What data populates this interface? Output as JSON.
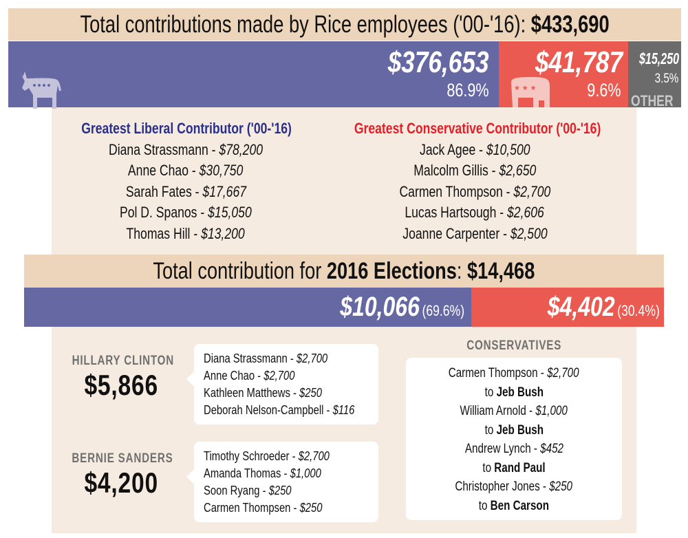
{
  "header": {
    "title_text": "Total contributions made by Rice employees ('00-'16): ",
    "title_total": "$433,690"
  },
  "overall": {
    "democrat": {
      "amount": "$376,653",
      "percent": "86.9%",
      "icon": "donkey-icon"
    },
    "republican": {
      "amount": "$41,787",
      "percent": "9.6%",
      "icon": "elephant-icon"
    },
    "other": {
      "amount": "$15,250",
      "percent": "3.5%",
      "label": "OTHER"
    }
  },
  "liberal": {
    "heading": "Greatest Liberal Contributor ('00-'16)",
    "items": [
      {
        "name": "Diana Strassmann - ",
        "amount": "$78,200"
      },
      {
        "name": "Anne Chao - ",
        "amount": "$30,750"
      },
      {
        "name": "Sarah Fates - ",
        "amount": "$17,667"
      },
      {
        "name": "Pol D. Spanos - ",
        "amount": "$15,050"
      },
      {
        "name": "Thomas Hill - ",
        "amount": "$13,200"
      }
    ]
  },
  "conservative": {
    "heading": "Greatest Conservative Contributor ('00-'16)",
    "items": [
      {
        "name": "Jack Agee - ",
        "amount": "$10,500"
      },
      {
        "name": "Malcolm Gillis - ",
        "amount": "$2,650"
      },
      {
        "name": "Carmen Thompson - ",
        "amount": "$2,700"
      },
      {
        "name": "Lucas Hartsough - ",
        "amount": "$2,606"
      },
      {
        "name": "Joanne Carpenter - ",
        "amount": "$2,500"
      }
    ]
  },
  "election2016": {
    "title_text": "Total contribution for ",
    "title_bold": "2016 Elections",
    "title_colon": ": ",
    "title_total": "$14,468",
    "democrat": {
      "amount": "$10,066",
      "percent": "(69.6%)"
    },
    "republican": {
      "amount": "$4,402",
      "percent": "(30.4%)"
    }
  },
  "candidates": [
    {
      "name": "HILLARY CLINTON",
      "total": "$5,866",
      "donors": [
        {
          "name": "Diana Strassmann - ",
          "amount": "$2,700"
        },
        {
          "name": "Anne Chao - ",
          "amount": "$2,700"
        },
        {
          "name": "Kathleen Matthews - ",
          "amount": "$250"
        },
        {
          "name": "Deborah Nelson-Campbell - ",
          "amount": "$116"
        }
      ]
    },
    {
      "name": "BERNIE SANDERS",
      "total": "$4,200",
      "donors": [
        {
          "name": "Timothy Schroeder - ",
          "amount": "$2,700"
        },
        {
          "name": "Amanda Thomas - ",
          "amount": "$1,000"
        },
        {
          "name": "Soon Ryang - ",
          "amount": "$250"
        },
        {
          "name": "Carmen Thompsen - ",
          "amount": "$250"
        }
      ]
    }
  ],
  "conservatives2016": {
    "heading": "CONSERVATIVES",
    "items": [
      {
        "name": "Carmen Thompson - ",
        "amount": "$2,700",
        "to": "to ",
        "recipient": "Jeb Bush"
      },
      {
        "name": "William Arnold - ",
        "amount": "$1,000",
        "to": "to ",
        "recipient": "Jeb Bush"
      },
      {
        "name": "Andrew Lynch - ",
        "amount": "$452",
        "to": "to ",
        "recipient": "Rand Paul"
      },
      {
        "name": "Christopher Jones - ",
        "amount": "$250",
        "to": "to ",
        "recipient": "Ben Carson"
      }
    ]
  },
  "colors": {
    "democrat": "#6668a3",
    "republican": "#ea5a50",
    "other": "#6b6b6b",
    "band": "#ecd5bb",
    "panel": "#f5ebe1",
    "liberal_heading": "#2b2f8c",
    "conservative_heading": "#e3202a"
  },
  "chart_data": [
    {
      "type": "bar",
      "stacked": true,
      "title": "Total contributions made by Rice employees ('00-'16): $433,690",
      "categories": [
        "Democrat",
        "Republican",
        "Other"
      ],
      "values": [
        376653,
        41787,
        15250
      ],
      "percents": [
        86.9,
        9.6,
        3.5
      ]
    },
    {
      "type": "bar",
      "stacked": true,
      "title": "Total contribution for 2016 Elections: $14,468",
      "categories": [
        "Democrat",
        "Republican"
      ],
      "values": [
        10066,
        4402
      ],
      "percents": [
        69.6,
        30.4
      ]
    }
  ]
}
